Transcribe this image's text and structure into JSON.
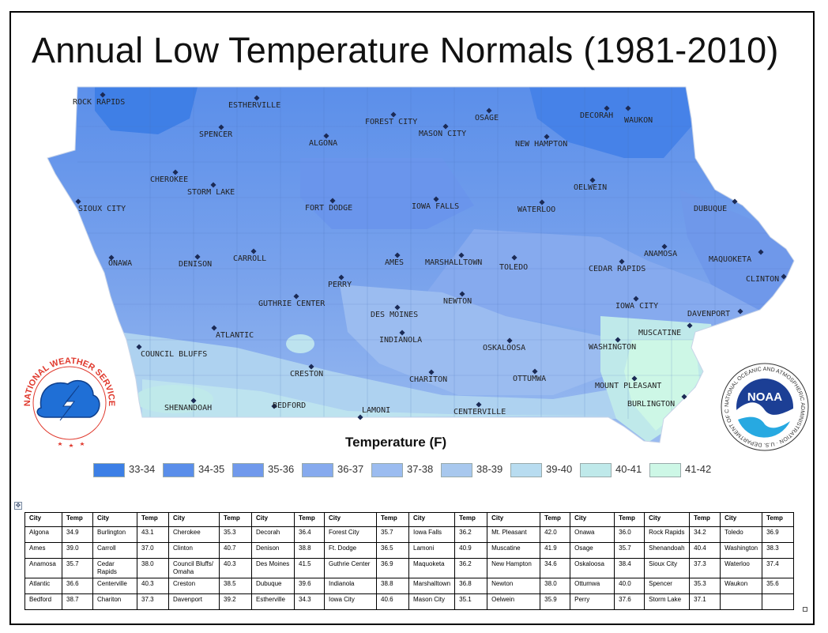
{
  "title": "Annual Low Temperature Normals (1981-2010)",
  "legend_title": "Temperature (F)",
  "legend": [
    {
      "label": "33-34",
      "color": "#3c7fe6"
    },
    {
      "label": "34-35",
      "color": "#5a8eea"
    },
    {
      "label": "35-36",
      "color": "#7099ec"
    },
    {
      "label": "36-37",
      "color": "#86aaee"
    },
    {
      "label": "37-38",
      "color": "#9bbcf0"
    },
    {
      "label": "38-39",
      "color": "#a8c8ee"
    },
    {
      "label": "39-40",
      "color": "#b8dcf0"
    },
    {
      "label": "40-41",
      "color": "#bfe9ea"
    },
    {
      "label": "41-42",
      "color": "#cdf7e6"
    }
  ],
  "logos": {
    "nws": {
      "text": "NATIONAL WEATHER SERVICE",
      "color": "#e03a2e"
    },
    "noaa": {
      "text": "NOAA",
      "ring_text": "NATIONAL OCEANIC AND ATMOSPHERIC ADMINISTRATION · U.S. DEPARTMENT OF COMMERCE",
      "color": "#1c3f95"
    }
  },
  "map_labels": [
    "ROCK RAPIDS",
    "ESTHERVILLE",
    "FOREST CITY",
    "OSAGE",
    "DECORAH",
    "WAUKON",
    "SPENCER",
    "ALGONA",
    "MASON CITY",
    "NEW HAMPTON",
    "CHEROKEE",
    "STORM LAKE",
    "OELWEIN",
    "SIOUX CITY",
    "FORT DODGE",
    "IOWA FALLS",
    "WATERLOO",
    "DUBUQUE",
    "ONAWA",
    "DENISON",
    "CARROLL",
    "AMES",
    "MARSHALLTOWN",
    "TOLEDO",
    "CEDAR RAPIDS",
    "ANAMOSA",
    "MAQUOKETA",
    "CLINTON",
    "PERRY",
    "GUTHRIE CENTER",
    "NEWTON",
    "IOWA CITY",
    "DES MOINES",
    "DAVENPORT",
    "ATLANTIC",
    "INDIANOLA",
    "MUSCATINE",
    "WASHINGTON",
    "COUNCIL BLUFFS",
    "OSKALOOSA",
    "CRESTON",
    "CHARITON",
    "OTTUMWA",
    "MOUNT PLEASANT",
    "SHENANDOAH",
    "BEDFORD",
    "LAMONI",
    "CENTERVILLE",
    "BURLINGTON"
  ],
  "table": {
    "header": [
      "City",
      "Temp",
      "City",
      "Temp",
      "City",
      "Temp",
      "City",
      "Temp",
      "City",
      "Temp",
      "City",
      "Temp",
      "City",
      "Temp",
      "City",
      "Temp",
      "City",
      "Temp",
      "City",
      "Temp"
    ],
    "rows": [
      [
        "Algona",
        "34.9",
        "Burlington",
        "43.1",
        "Cherokee",
        "35.3",
        "Decorah",
        "36.4",
        "Forest City",
        "35.7",
        "Iowa Falls",
        "36.2",
        "Mt. Pleasant",
        "42.0",
        "Onawa",
        "36.0",
        "Rock Rapids",
        "34.2",
        "Toledo",
        "36.9"
      ],
      [
        "Ames",
        "39.0",
        "Carroll",
        "37.0",
        "Clinton",
        "40.7",
        "Denison",
        "38.8",
        "Ft. Dodge",
        "36.5",
        "Lamoni",
        "40.9",
        "Muscatine",
        "41.9",
        "Osage",
        "35.7",
        "Shenandoah",
        "40.4",
        "Washington",
        "38.3"
      ],
      [
        "Anamosa",
        "35.7",
        "Cedar Rapids",
        "38.0",
        "Council Bluffs/ Omaha",
        "40.3",
        "Des Moines",
        "41.5",
        "Guthrie Center",
        "36.9",
        "Maquoketa",
        "36.2",
        "New Hampton",
        "34.6",
        "Oskaloosa",
        "38.4",
        "Sioux City",
        "37.3",
        "Waterloo",
        "37.4"
      ],
      [
        "Atlantic",
        "36.6",
        "Centerville",
        "40.3",
        "Creston",
        "38.5",
        "Dubuque",
        "39.6",
        "Indianola",
        "38.8",
        "Marshalltown",
        "36.8",
        "Newton",
        "38.0",
        "Ottumwa",
        "40.0",
        "Spencer",
        "35.3",
        "Waukon",
        "35.6"
      ],
      [
        "Bedford",
        "38.7",
        "Chariton",
        "37.3",
        "Davenport",
        "39.2",
        "Estherville",
        "34.3",
        "Iowa City",
        "40.6",
        "Mason City",
        "35.1",
        "Oelwein",
        "35.9",
        "Perry",
        "37.6",
        "Storm Lake",
        "37.1",
        "",
        ""
      ]
    ]
  }
}
